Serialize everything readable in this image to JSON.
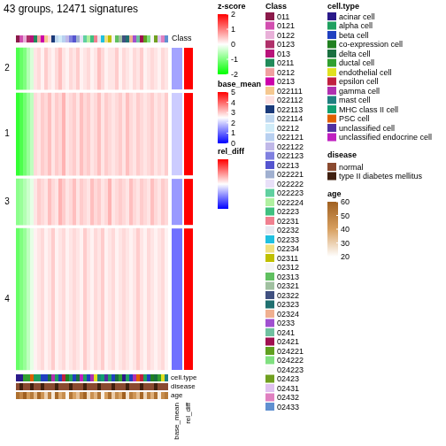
{
  "chart_data": {
    "type": "heatmap",
    "title": "43 groups, 12471 signatures",
    "tick_labels": false,
    "ylim": [
      0,
      12471
    ],
    "annotation_labels": {
      "top": "Class",
      "bottom": [
        "cell.type",
        "disease",
        "age"
      ],
      "right": [
        "base_mean",
        "rel_diff"
      ]
    },
    "columns": [
      {
        "class": "011",
        "cell_type": "acinar cell",
        "disease": "normal",
        "age": 55
      },
      {
        "class": "0121",
        "cell_type": "acinar cell",
        "disease": "type II diabetes mellitus",
        "age": 48
      },
      {
        "class": "0122",
        "cell_type": "ductal cell",
        "disease": "normal",
        "age": 60
      },
      {
        "class": "0123",
        "cell_type": "ductal cell",
        "disease": "normal",
        "age": 42
      },
      {
        "class": "013",
        "cell_type": "PSC cell",
        "disease": "type II diabetes mellitus",
        "age": 52
      },
      {
        "class": "0211",
        "cell_type": "alpha cell",
        "disease": "normal",
        "age": 35
      },
      {
        "class": "0212",
        "cell_type": "alpha cell",
        "disease": "normal",
        "age": 58
      },
      {
        "class": "0213",
        "cell_type": "beta cell",
        "disease": "type II diabetes mellitus",
        "age": 44
      },
      {
        "class": "022111",
        "cell_type": "beta cell",
        "disease": "normal",
        "age": 30
      },
      {
        "class": "022112",
        "cell_type": "delta cell",
        "disease": "normal",
        "age": 50
      },
      {
        "class": "022113",
        "cell_type": "gamma cell",
        "disease": "normal",
        "age": 25
      },
      {
        "class": "022114",
        "cell_type": "alpha cell",
        "disease": "type II diabetes mellitus",
        "age": 57
      },
      {
        "class": "02212",
        "cell_type": "beta cell",
        "disease": "normal",
        "age": 38
      },
      {
        "class": "022121",
        "cell_type": "epsilon cell",
        "disease": "normal",
        "age": 46
      },
      {
        "class": "022122",
        "cell_type": "co-expression cell",
        "disease": "normal",
        "age": 22
      },
      {
        "class": "022123",
        "cell_type": "alpha cell",
        "disease": "type II diabetes mellitus",
        "age": 53
      },
      {
        "class": "02213",
        "cell_type": "beta cell",
        "disease": "normal",
        "age": 40
      },
      {
        "class": "022221",
        "cell_type": "delta cell",
        "disease": "normal",
        "age": 33
      },
      {
        "class": "022222",
        "cell_type": "unclassified endocrine cell",
        "disease": "normal",
        "age": 49
      },
      {
        "class": "022223",
        "cell_type": "alpha cell",
        "disease": "type II diabetes mellitus",
        "age": 59
      },
      {
        "class": "022224",
        "cell_type": "beta cell",
        "disease": "normal",
        "age": 28
      },
      {
        "class": "02223",
        "cell_type": "gamma cell",
        "disease": "normal",
        "age": 45
      },
      {
        "class": "02231",
        "cell_type": "endothelial cell",
        "disease": "normal",
        "age": 36
      },
      {
        "class": "02232",
        "cell_type": "mast cell",
        "disease": "type II diabetes mellitus",
        "age": 54
      },
      {
        "class": "02233",
        "cell_type": "MHC class II cell",
        "disease": "normal",
        "age": 23
      },
      {
        "class": "02234",
        "cell_type": "unclassified cell",
        "disease": "normal",
        "age": 41
      },
      {
        "class": "02311",
        "cell_type": "alpha cell",
        "disease": "normal",
        "age": 56
      },
      {
        "class": "02312",
        "cell_type": "beta cell",
        "disease": "type II diabetes mellitus",
        "age": 31
      },
      {
        "class": "02313",
        "cell_type": "delta cell",
        "disease": "normal",
        "age": 47
      },
      {
        "class": "02321",
        "cell_type": "ductal cell",
        "disease": "normal",
        "age": 39
      },
      {
        "class": "02322",
        "cell_type": "acinar cell",
        "disease": "normal",
        "age": 60
      },
      {
        "class": "02323",
        "cell_type": "alpha cell",
        "disease": "type II diabetes mellitus",
        "age": 26
      },
      {
        "class": "02324",
        "cell_type": "beta cell",
        "disease": "normal",
        "age": 51
      },
      {
        "class": "0233",
        "cell_type": "gamma cell",
        "disease": "normal",
        "age": 43
      },
      {
        "class": "0241",
        "cell_type": "PSC cell",
        "disease": "normal",
        "age": 34
      },
      {
        "class": "02421",
        "cell_type": "epsilon cell",
        "disease": "type II diabetes mellitus",
        "age": 58
      },
      {
        "class": "024221",
        "cell_type": "alpha cell",
        "disease": "normal",
        "age": 29
      },
      {
        "class": "024222",
        "cell_type": "beta cell",
        "disease": "normal",
        "age": 50
      },
      {
        "class": "024223",
        "cell_type": "co-expression cell",
        "disease": "normal",
        "age": 37
      },
      {
        "class": "02423",
        "cell_type": "delta cell",
        "disease": "type II diabetes mellitus",
        "age": 55
      },
      {
        "class": "02431",
        "cell_type": "ductal cell",
        "disease": "normal",
        "age": 24
      },
      {
        "class": "02432",
        "cell_type": "endothelial cell",
        "disease": "normal",
        "age": 46
      },
      {
        "class": "02433",
        "cell_type": "mast cell",
        "disease": "normal",
        "age": 52
      }
    ],
    "row_slices": [
      {
        "name": "2",
        "rows": 1730,
        "base_mean": 1.6,
        "rel_diff": 1,
        "z_scores": [
          -1.4,
          -1.2,
          -1.0,
          -0.6,
          -0.3,
          0.2,
          0.3,
          0.1,
          0.4,
          0.2,
          0.1,
          0.3,
          0.5,
          0.2,
          0.1,
          0.3,
          0.2,
          0.4,
          0.1,
          0.2,
          0.3,
          0.1,
          0.2,
          0.5,
          0.3,
          0.1,
          0.2,
          0.2,
          0.4,
          0.1,
          0.3,
          0.2,
          0.1,
          0.3,
          0.2,
          0.4,
          0.1,
          0.2,
          0.3,
          0.2,
          0.1,
          0.3,
          0.2
        ]
      },
      {
        "name": "1",
        "rows": 3290,
        "base_mean": 2.0,
        "rel_diff": 1,
        "z_scores": [
          -1.6,
          -1.4,
          -1.1,
          -0.8,
          -0.5,
          0.3,
          0.2,
          0.4,
          0.3,
          0.5,
          0.2,
          0.4,
          0.3,
          0.6,
          0.2,
          0.3,
          0.4,
          0.2,
          0.5,
          0.3,
          0.4,
          0.2,
          0.3,
          0.5,
          0.2,
          0.4,
          0.3,
          0.2,
          0.3,
          0.4,
          0.2,
          0.5,
          0.3,
          0.2,
          0.4,
          0.3,
          0.2,
          0.3,
          0.4,
          0.2,
          0.3,
          0.2,
          0.4
        ]
      },
      {
        "name": "3",
        "rows": 1900,
        "base_mean": 1.5,
        "rel_diff": 1,
        "z_scores": [
          -0.9,
          -0.8,
          -0.6,
          -0.4,
          -0.2,
          0.2,
          0.4,
          0.3,
          0.2,
          0.5,
          0.3,
          0.2,
          0.6,
          0.4,
          0.2,
          0.3,
          0.5,
          0.2,
          0.4,
          0.3,
          0.2,
          0.5,
          0.3,
          0.4,
          0.2,
          0.3,
          0.6,
          0.2,
          0.3,
          0.4,
          0.3,
          0.2,
          0.5,
          0.3,
          0.2,
          0.4,
          0.3,
          0.2,
          0.5,
          0.3,
          0.2,
          0.4,
          0.3
        ]
      },
      {
        "name": "4",
        "rows": 5551,
        "base_mean": 1.1,
        "rel_diff": 1,
        "z_scores": [
          -1.2,
          -1.0,
          -0.8,
          -0.5,
          -0.2,
          0.1,
          0.2,
          0.3,
          0.1,
          0.2,
          0.4,
          0.1,
          0.2,
          0.3,
          0.1,
          0.2,
          0.3,
          0.2,
          0.1,
          0.4,
          0.2,
          0.1,
          0.3,
          0.2,
          0.4,
          0.1,
          0.2,
          0.3,
          0.1,
          0.2,
          0.3,
          0.2,
          0.1,
          0.2,
          0.4,
          0.2,
          0.1,
          0.3,
          0.2,
          0.1,
          0.2,
          0.3,
          0.1
        ]
      }
    ],
    "legends": {
      "z_score": {
        "title": "z-score",
        "range": [
          -2,
          2
        ],
        "ticks": [
          -2,
          -1,
          0,
          1,
          2
        ],
        "colors": [
          "#00ff00",
          "#ffffff",
          "#ff0000"
        ]
      },
      "base_mean": {
        "title": "base_mean",
        "range": [
          0,
          5
        ],
        "ticks": [
          0,
          1,
          2,
          3,
          4,
          5
        ],
        "colors": [
          "#0000ff",
          "#ffffff",
          "#ff0000"
        ]
      },
      "rel_diff": {
        "title": "rel_diff",
        "range": [
          0,
          1
        ],
        "colors": [
          "#0000ff",
          "#ffffff",
          "#ff0000"
        ]
      },
      "class": {
        "title": "Class",
        "items": [
          {
            "label": "011",
            "color": "#8b1a4a"
          },
          {
            "label": "0121",
            "color": "#d24fb0"
          },
          {
            "label": "0122",
            "color": "#e8b0d8"
          },
          {
            "label": "0123",
            "color": "#b0306a"
          },
          {
            "label": "013",
            "color": "#b8137a"
          },
          {
            "label": "0211",
            "color": "#218a5a"
          },
          {
            "label": "0212",
            "color": "#f0a0a0"
          },
          {
            "label": "0213",
            "color": "#cc00aa"
          },
          {
            "label": "022111",
            "color": "#f5c890"
          },
          {
            "label": "022112",
            "color": "#fde0e0"
          },
          {
            "label": "022113",
            "color": "#1a3a7a"
          },
          {
            "label": "022114",
            "color": "#c0d8f0"
          },
          {
            "label": "02212",
            "color": "#d0ecf8"
          },
          {
            "label": "022121",
            "color": "#b8d0f0"
          },
          {
            "label": "022122",
            "color": "#c0b8e8"
          },
          {
            "label": "022123",
            "color": "#8080e0"
          },
          {
            "label": "02213",
            "color": "#5555d0"
          },
          {
            "label": "022221",
            "color": "#a0b0d0"
          },
          {
            "label": "022222",
            "color": "#e8e0f8"
          },
          {
            "label": "022223",
            "color": "#60d0a0"
          },
          {
            "label": "022224",
            "color": "#b0f0a0"
          },
          {
            "label": "02223",
            "color": "#40c080"
          },
          {
            "label": "02231",
            "color": "#f08090"
          },
          {
            "label": "02232",
            "color": "#e8e8f0"
          },
          {
            "label": "02233",
            "color": "#20c0e0"
          },
          {
            "label": "02234",
            "color": "#f0e080"
          },
          {
            "label": "02311",
            "color": "#c0c000"
          },
          {
            "label": "02312",
            "color": "#f4f4f4"
          },
          {
            "label": "02313",
            "color": "#60c060"
          },
          {
            "label": "02321",
            "color": "#a0c0a0"
          },
          {
            "label": "02322",
            "color": "#405080"
          },
          {
            "label": "02323",
            "color": "#207070"
          },
          {
            "label": "02324",
            "color": "#f0b090"
          },
          {
            "label": "0233",
            "color": "#a050d0"
          },
          {
            "label": "0241",
            "color": "#70c0a0"
          },
          {
            "label": "02421",
            "color": "#a01050"
          },
          {
            "label": "024221",
            "color": "#60a020"
          },
          {
            "label": "024222",
            "color": "#80e080"
          },
          {
            "label": "024223",
            "color": "#f8f8f8"
          },
          {
            "label": "02423",
            "color": "#70a020"
          },
          {
            "label": "02431",
            "color": "#e0c0f0"
          },
          {
            "label": "02432",
            "color": "#e080c0"
          },
          {
            "label": "02433",
            "color": "#6090d0"
          }
        ]
      },
      "cell_type": {
        "title": "cell.type",
        "items": [
          {
            "label": "acinar cell",
            "color": "#2a1a8a"
          },
          {
            "label": "alpha cell",
            "color": "#20a060"
          },
          {
            "label": "beta cell",
            "color": "#2040c0"
          },
          {
            "label": "co-expression cell",
            "color": "#208020"
          },
          {
            "label": "delta cell",
            "color": "#1a7040"
          },
          {
            "label": "ductal cell",
            "color": "#30a030"
          },
          {
            "label": "endothelial cell",
            "color": "#e0e020"
          },
          {
            "label": "epsilon cell",
            "color": "#c02040"
          },
          {
            "label": "gamma cell",
            "color": "#b030b0"
          },
          {
            "label": "mast cell",
            "color": "#208080"
          },
          {
            "label": "MHC class II cell",
            "color": "#10a070"
          },
          {
            "label": "PSC cell",
            "color": "#e06000"
          },
          {
            "label": "unclassified cell",
            "color": "#5030a0"
          },
          {
            "label": "unclassified endocrine cell",
            "color": "#c020c0"
          }
        ]
      },
      "disease": {
        "title": "disease",
        "items": [
          {
            "label": "normal",
            "color": "#8a4a30"
          },
          {
            "label": "type II diabetes mellitus",
            "color": "#402010"
          }
        ]
      },
      "age": {
        "title": "age",
        "range": [
          20,
          60
        ],
        "ticks": [
          20,
          30,
          40,
          50,
          60
        ],
        "colors": [
          "#ffffff",
          "#d8a060",
          "#a06020"
        ]
      }
    }
  }
}
